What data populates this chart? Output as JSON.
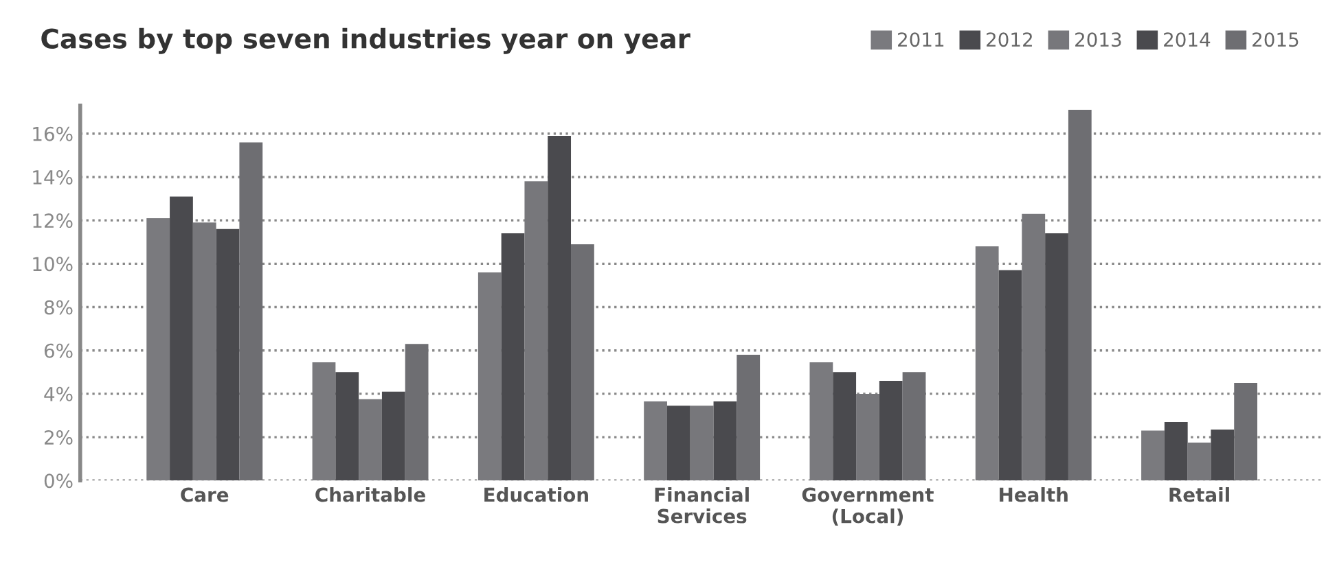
{
  "chart_data": {
    "type": "bar",
    "title": "Cases by top seven industries year on year",
    "categories": [
      "Care",
      "Charitable",
      "Education",
      "Financial\nServices",
      "Government\n(Local)",
      "Health",
      "Retail"
    ],
    "series": [
      {
        "name": "2011",
        "color": "#7a7a7e",
        "values": [
          12.1,
          5.45,
          9.6,
          3.65,
          5.45,
          10.8,
          2.3
        ]
      },
      {
        "name": "2012",
        "color": "#4a4a4e",
        "values": [
          13.1,
          5.0,
          11.4,
          3.45,
          5.0,
          9.7,
          2.7
        ]
      },
      {
        "name": "2013",
        "color": "#77777b",
        "values": [
          11.9,
          3.75,
          13.8,
          3.45,
          4.0,
          12.3,
          1.75
        ]
      },
      {
        "name": "2014",
        "color": "#4a4a4e",
        "values": [
          11.6,
          4.1,
          15.9,
          3.65,
          4.6,
          11.4,
          2.35
        ]
      },
      {
        "name": "2015",
        "color": "#6e6e72",
        "values": [
          15.6,
          6.3,
          10.9,
          5.8,
          5.0,
          17.1,
          4.5
        ]
      }
    ],
    "ylim": [
      0,
      17.3
    ],
    "yticks": [
      {
        "value": 0,
        "label": "0%"
      },
      {
        "value": 2,
        "label": "2%"
      },
      {
        "value": 4,
        "label": "4%"
      },
      {
        "value": 6,
        "label": "6%"
      },
      {
        "value": 8,
        "label": "8%"
      },
      {
        "value": 10,
        "label": "10%"
      },
      {
        "value": 12,
        "label": "12%"
      },
      {
        "value": 14,
        "label": "14%"
      },
      {
        "value": 16,
        "label": "16%"
      }
    ],
    "grid": "y",
    "legend": "top right"
  }
}
